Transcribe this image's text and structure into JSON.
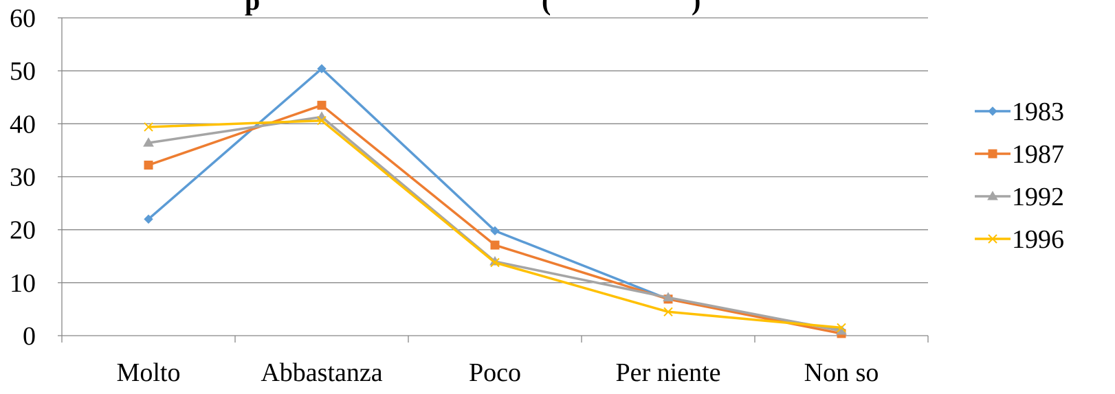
{
  "chart_data": {
    "type": "line",
    "title_visible_fragment": "p                              (                    )",
    "xlabel": "",
    "ylabel": "",
    "categories": [
      "Molto",
      "Abbastanza",
      "Poco",
      "Per niente",
      "Non so"
    ],
    "ylim": [
      0,
      60
    ],
    "yticks": [
      0,
      10,
      20,
      30,
      40,
      50,
      60
    ],
    "grid": true,
    "legend_position": "right",
    "series": [
      {
        "name": "1983",
        "values": [
          22.0,
          50.4,
          19.8,
          6.9,
          1.0
        ],
        "color": "#5B9BD5",
        "marker": "diamond"
      },
      {
        "name": "1987",
        "values": [
          32.2,
          43.5,
          17.1,
          6.9,
          0.4
        ],
        "color": "#ED7D31",
        "marker": "square"
      },
      {
        "name": "1992",
        "values": [
          36.4,
          41.3,
          14.0,
          7.2,
          0.9
        ],
        "color": "#A5A5A5",
        "marker": "triangle"
      },
      {
        "name": "1996",
        "values": [
          39.4,
          40.6,
          13.8,
          4.5,
          1.5
        ],
        "color": "#FFC000",
        "marker": "x"
      }
    ]
  }
}
